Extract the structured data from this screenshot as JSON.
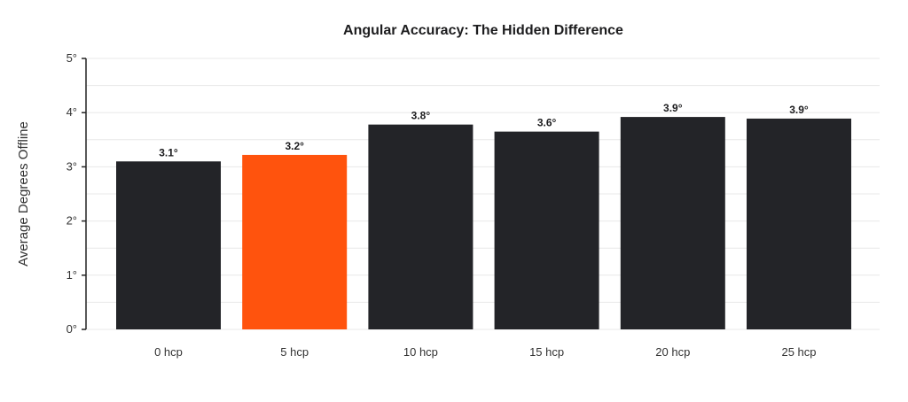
{
  "chart_data": {
    "type": "bar",
    "title": "Angular Accuracy: The Hidden Difference",
    "ylabel": "Average Degrees Offline",
    "xlabel": "",
    "categories": [
      "0 hcp",
      "5 hcp",
      "10 hcp",
      "15 hcp",
      "20 hcp",
      "25 hcp"
    ],
    "values": [
      3.1,
      3.22,
      3.78,
      3.65,
      3.92,
      3.89
    ],
    "data_labels": [
      "3.1°",
      "3.2°",
      "3.8°",
      "3.6°",
      "3.9°",
      "3.9°"
    ],
    "ylim": [
      0,
      5
    ],
    "yticks": [
      0,
      1,
      2,
      3,
      4,
      5
    ],
    "ytick_labels": [
      "0°",
      "1°",
      "2°",
      "3°",
      "4°",
      "5°"
    ],
    "grid": true,
    "colors": {
      "default_bar": "#232428",
      "highlight_bar": "#ff530d",
      "highlight_category": "5 hcp"
    }
  }
}
